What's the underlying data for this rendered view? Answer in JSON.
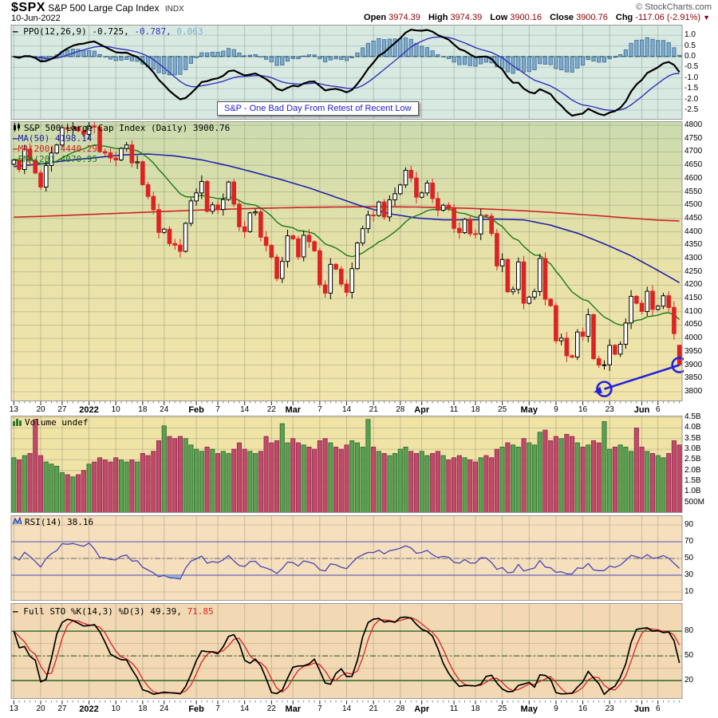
{
  "header": {
    "symbol": "$SPX",
    "name": "S&P 500 Large Cap Index",
    "exchange": "INDX",
    "date": "10-Jun-2022",
    "copyright": "© StockCharts.com",
    "open_label": "Open",
    "open": "3974.39",
    "high_label": "High",
    "high": "3974.39",
    "low_label": "Low",
    "low": "3900.16",
    "close_label": "Close",
    "close": "3900.76",
    "chg_label": "Chg",
    "chg": "-117.06 (-2.91%)"
  },
  "ui": {
    "dash": "—",
    "triangle": "▼"
  },
  "ppo": {
    "title": "PPO(12,26,9)",
    "v1": "-0.725,",
    "v2": "-0.787,",
    "v3": "0.063",
    "ticks": [
      {
        "v": 1.0,
        "t": "1.0"
      },
      {
        "v": 0.5,
        "t": "0.5"
      },
      {
        "v": 0.0,
        "t": "0.0"
      },
      {
        "v": -0.5,
        "t": "-0.5"
      },
      {
        "v": -1.0,
        "t": "-1.0"
      },
      {
        "v": -1.5,
        "t": "-1.5"
      },
      {
        "v": -2.0,
        "t": "-2.0"
      },
      {
        "v": -2.5,
        "t": "-2.5"
      }
    ]
  },
  "price": {
    "legend": "S&P 500 Large Cap Index (Daily) 3900.76",
    "ma50": "MA(50) 4198.14",
    "ma200": "MA(200) 4440.29",
    "ema20": "EMA(20) 4070.95",
    "annotation": "S&P - One Bad Day From Retest of Recent Low",
    "ticks": [
      {
        "v": 4800,
        "t": "4800"
      },
      {
        "v": 4750,
        "t": "4750"
      },
      {
        "v": 4700,
        "t": "4700"
      },
      {
        "v": 4650,
        "t": "4650"
      },
      {
        "v": 4600,
        "t": "4600"
      },
      {
        "v": 4550,
        "t": "4550"
      },
      {
        "v": 4500,
        "t": "4500"
      },
      {
        "v": 4450,
        "t": "4450"
      },
      {
        "v": 4400,
        "t": "4400"
      },
      {
        "v": 4350,
        "t": "4350"
      },
      {
        "v": 4300,
        "t": "4300"
      },
      {
        "v": 4250,
        "t": "4250"
      },
      {
        "v": 4200,
        "t": "4200"
      },
      {
        "v": 4150,
        "t": "4150"
      },
      {
        "v": 4100,
        "t": "4100"
      },
      {
        "v": 4050,
        "t": "4050"
      },
      {
        "v": 4000,
        "t": "4000"
      },
      {
        "v": 3950,
        "t": "3950"
      },
      {
        "v": 3900,
        "t": "3900"
      },
      {
        "v": 3850,
        "t": "3850"
      },
      {
        "v": 3800,
        "t": "3800"
      }
    ]
  },
  "volume": {
    "legend": "Volume undef",
    "ticks": [
      {
        "v": 4.5,
        "t": "4.5B"
      },
      {
        "v": 4.0,
        "t": "4.0B"
      },
      {
        "v": 3.5,
        "t": "3.5B"
      },
      {
        "v": 3.0,
        "t": "3.0B"
      },
      {
        "v": 2.5,
        "t": "2.5B"
      },
      {
        "v": 2.0,
        "t": "2.0B"
      },
      {
        "v": 1.5,
        "t": "1.5B"
      },
      {
        "v": 1.0,
        "t": "1.0B"
      },
      {
        "v": 0.5,
        "t": "500M"
      }
    ]
  },
  "rsi": {
    "legend": "RSI(14) 38.16",
    "ticks": [
      {
        "v": 90,
        "t": "90"
      },
      {
        "v": 70,
        "t": "70"
      },
      {
        "v": 50,
        "t": "50"
      },
      {
        "v": 30,
        "t": "30"
      },
      {
        "v": 10,
        "t": "10"
      }
    ]
  },
  "sto": {
    "legend": "Full STO %K(14,3) %D(3) 49.39,",
    "v2": "71.85",
    "ticks": [
      {
        "v": 80,
        "t": "80"
      },
      {
        "v": 50,
        "t": "50"
      },
      {
        "v": 20,
        "t": "20"
      }
    ]
  },
  "x_axis": {
    "labels": [
      {
        "label": "13",
        "i": 0
      },
      {
        "label": "20",
        "i": 5
      },
      {
        "label": "27",
        "i": 9
      },
      {
        "label": "2022",
        "i": 14,
        "bold": true
      },
      {
        "label": "10",
        "i": 19
      },
      {
        "label": "18",
        "i": 24
      },
      {
        "label": "24",
        "i": 28
      },
      {
        "label": "Feb",
        "i": 34,
        "bold": true
      },
      {
        "label": "7",
        "i": 38
      },
      {
        "label": "14",
        "i": 43
      },
      {
        "label": "22",
        "i": 48
      },
      {
        "label": "Mar",
        "i": 52,
        "bold": true
      },
      {
        "label": "7",
        "i": 57
      },
      {
        "label": "14",
        "i": 62
      },
      {
        "label": "21",
        "i": 67
      },
      {
        "label": "28",
        "i": 72
      },
      {
        "label": "Apr",
        "i": 76,
        "bold": true
      },
      {
        "label": "11",
        "i": 82
      },
      {
        "label": "18",
        "i": 86
      },
      {
        "label": "25",
        "i": 91
      },
      {
        "label": "May",
        "i": 96,
        "bold": true
      },
      {
        "label": "9",
        "i": 101
      },
      {
        "label": "16",
        "i": 106
      },
      {
        "label": "23",
        "i": 111
      },
      {
        "label": "Jun",
        "i": 117,
        "bold": true
      },
      {
        "label": "6",
        "i": 120
      }
    ]
  },
  "colors": {
    "candle_red": "#dd2222",
    "candle_black": "#000000",
    "ma50": "#2222aa",
    "ma200": "#cc2222",
    "ema20": "#1a7a1a",
    "ppo_line": "#000000",
    "ppo_signal": "#3333bb",
    "hist_fill": "#7aaccf",
    "hist_stroke": "#44688e",
    "vol_up": "#59a054",
    "vol_up_stroke": "#35702f",
    "vol_down": "#c4486b",
    "vol_down_stroke": "#8e3050",
    "rsi_line": "#4747b8",
    "rsi_band": "#6666bb",
    "rsi_shade": "#7aaccf",
    "sto_k": "#000000",
    "sto_d": "#dd2222",
    "sto_band": "#1a5c1a",
    "trend_blue": "#2222dd",
    "maroon": "#8b0000",
    "ppo_bg": "#d8e9e2",
    "vol_bg": "#f0e3a6",
    "rsi_bg": "#f6dfbd",
    "sto_bg": "#f2d9b3",
    "price_bg_top": "#cbdcae",
    "price_bg_mid": "#e6e1a8",
    "price_bg_bot": "#f2e5ac"
  },
  "chart_data": {
    "type": "candlestick+volume+indicators",
    "symbol": "$SPX",
    "period": "Daily, 13-Dec-2021 to 10-Jun-2022",
    "price_axis_range": [
      3800,
      4800
    ],
    "closes": [
      4669,
      4634,
      4710,
      4669,
      4621,
      4568,
      4649,
      4696,
      4726,
      4791,
      4786,
      4793,
      4779,
      4766,
      4797,
      4793,
      4701,
      4696,
      4677,
      4670,
      4713,
      4726,
      4659,
      4663,
      4577,
      4533,
      4483,
      4398,
      4410,
      4356,
      4350,
      4327,
      4432,
      4516,
      4546,
      4589,
      4477,
      4501,
      4484,
      4521,
      4587,
      4504,
      4419,
      4401,
      4471,
      4475,
      4380,
      4349,
      4305,
      4225,
      4289,
      4385,
      4374,
      4306,
      4387,
      4363,
      4329,
      4201,
      4170,
      4278,
      4260,
      4204,
      4173,
      4262,
      4358,
      4412,
      4463,
      4461,
      4512,
      4456,
      4520,
      4543,
      4576,
      4631,
      4602,
      4530,
      4546,
      4583,
      4525,
      4481,
      4500,
      4488,
      4413,
      4397,
      4447,
      4393,
      4392,
      4462,
      4459,
      4394,
      4272,
      4296,
      4175,
      4184,
      4287,
      4132,
      4155,
      4176,
      4300,
      4147,
      4123,
      3991,
      4001,
      3935,
      3930,
      4024,
      4008,
      4089,
      3924,
      3900,
      3901,
      3974,
      3941,
      3978,
      4058,
      4158,
      4132,
      4101,
      4177,
      4109,
      4121,
      4160,
      4116,
      4018,
      3901
    ],
    "volumes_B": [
      2.6,
      2.5,
      2.7,
      2.8,
      4.4,
      2.7,
      2.4,
      2.3,
      2.2,
      1.9,
      1.8,
      1.7,
      1.8,
      2.0,
      2.3,
      2.4,
      2.6,
      2.5,
      2.4,
      2.6,
      2.5,
      2.4,
      2.5,
      2.4,
      2.8,
      2.7,
      2.9,
      3.4,
      4.1,
      3.6,
      3.5,
      3.6,
      3.5,
      3.2,
      3.0,
      2.9,
      3.1,
      3.0,
      2.8,
      2.9,
      2.8,
      3.0,
      3.3,
      3.0,
      2.9,
      2.8,
      2.9,
      3.6,
      3.3,
      3.4,
      4.2,
      3.3,
      3.5,
      3.3,
      3.2,
      3.1,
      3.0,
      3.4,
      3.5,
      3.3,
      3.1,
      3.0,
      3.2,
      3.4,
      3.3,
      3.1,
      4.4,
      3.1,
      2.9,
      2.8,
      2.7,
      2.8,
      3.0,
      3.1,
      2.9,
      2.8,
      2.9,
      2.7,
      2.8,
      2.9,
      2.7,
      2.5,
      2.6,
      2.7,
      2.6,
      2.5,
      2.4,
      2.6,
      2.7,
      2.6,
      3.0,
      3.1,
      3.3,
      3.2,
      3.1,
      3.5,
      3.3,
      3.2,
      3.8,
      3.9,
      3.4,
      3.6,
      3.5,
      3.7,
      3.6,
      3.3,
      3.1,
      3.2,
      3.4,
      3.3,
      4.3,
      3.0,
      3.1,
      3.2,
      3.1,
      2.9,
      4.0,
      3.1,
      2.9,
      2.8,
      2.7,
      2.6,
      2.8,
      3.4,
      3.2
    ],
    "ma50_ctrl": [
      4645,
      4655,
      4668,
      4678,
      4688,
      4692,
      4685,
      4670,
      4648,
      4622,
      4595,
      4565,
      4530,
      4495,
      4468,
      4452,
      4445,
      4445,
      4448,
      4445,
      4425,
      4395,
      4355,
      4310,
      4255,
      4198
    ],
    "ma200_ctrl": [
      4455,
      4458,
      4462,
      4466,
      4470,
      4474,
      4478,
      4482,
      4485,
      4488,
      4490,
      4492,
      4493,
      4494,
      4494,
      4493,
      4491,
      4488,
      4484,
      4479,
      4473,
      4466,
      4459,
      4451,
      4444,
      4440
    ],
    "last_candle": {
      "o": 3974.39,
      "h": 3974.39,
      "l": 3900.16,
      "c": 3900.76
    },
    "indicators": {
      "ppo": "PPO(12,26,9) = -0.725 / sig -0.787 / hist 0.063",
      "rsi": "RSI(14) = 38.16",
      "sto": "Full STO %K(14,3)=49.39 %D(3)=71.85"
    },
    "trendline": {
      "from_i": 110,
      "from_price": 3810,
      "to_i": 124,
      "to_price": 3900
    }
  }
}
